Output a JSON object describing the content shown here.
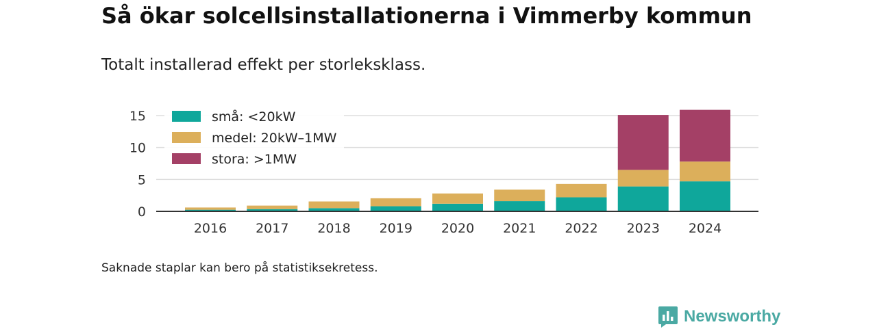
{
  "title": "Så ökar solcellsinstallationerna i Vimmerby kommun",
  "subtitle": "Totalt installerad effekt per storleksklass.",
  "footnote": "Saknade staplar kan bero på statistiksekretess.",
  "brand": {
    "name": "Newsworthy",
    "icon": "newsworthy-logo-icon",
    "color": "#4aa9a3"
  },
  "chart_data": {
    "type": "bar",
    "stacked": true,
    "categories": [
      "2016",
      "2017",
      "2018",
      "2019",
      "2020",
      "2021",
      "2022",
      "2023",
      "2024"
    ],
    "series": [
      {
        "name": "små: <20kW",
        "color": "#0fa79b",
        "values": [
          0.25,
          0.35,
          0.5,
          0.8,
          1.2,
          1.6,
          2.2,
          3.9,
          4.7
        ]
      },
      {
        "name": "medel: 20kW–1MW",
        "color": "#dcaf5b",
        "values": [
          0.35,
          0.55,
          1.05,
          1.25,
          1.6,
          1.8,
          2.1,
          2.6,
          3.1
        ]
      },
      {
        "name": "stora: >1MW",
        "color": "#a44066",
        "values": [
          0,
          0,
          0,
          0,
          0,
          0,
          0,
          8.6,
          8.1
        ]
      }
    ],
    "yticks": [
      0,
      5,
      10,
      15
    ],
    "ylim": [
      0,
      16
    ],
    "grid": true,
    "legend_position": "top-left"
  }
}
